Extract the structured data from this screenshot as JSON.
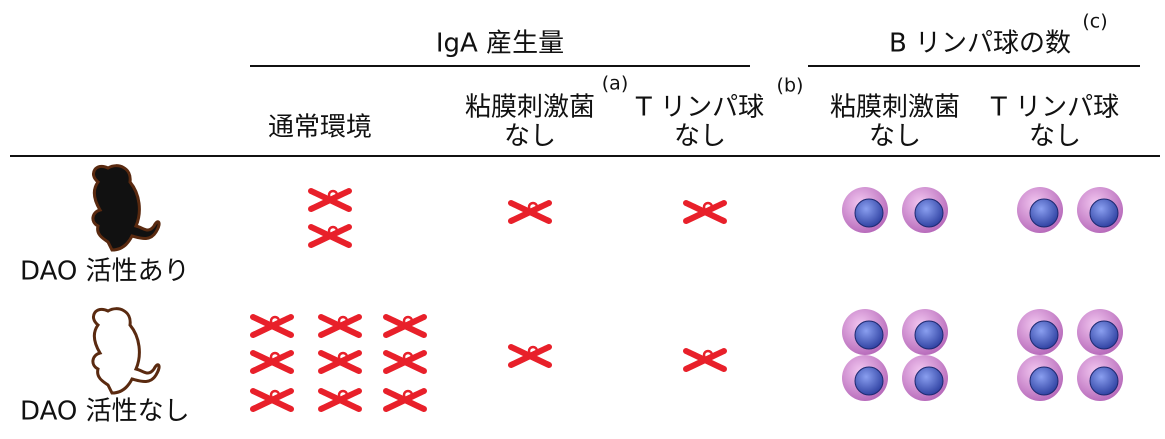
{
  "header": {
    "groups": [
      {
        "label": "IgA 産生量"
      },
      {
        "label": "B リンパ球の数",
        "note": "(c)"
      }
    ],
    "columns": [
      {
        "lines": [
          "通常環境"
        ]
      },
      {
        "lines": [
          "粘膜刺激菌",
          "なし"
        ],
        "note": "(a)"
      },
      {
        "lines": [
          "T リンパ球",
          "なし"
        ],
        "note": "(b)"
      },
      {
        "lines": [
          "粘膜刺激菌",
          "なし"
        ]
      },
      {
        "lines": [
          "T リンパ球",
          "なし"
        ]
      }
    ]
  },
  "rows": [
    {
      "label": "DAO 活性あり"
    },
    {
      "label": "DAO 活性なし"
    }
  ]
}
